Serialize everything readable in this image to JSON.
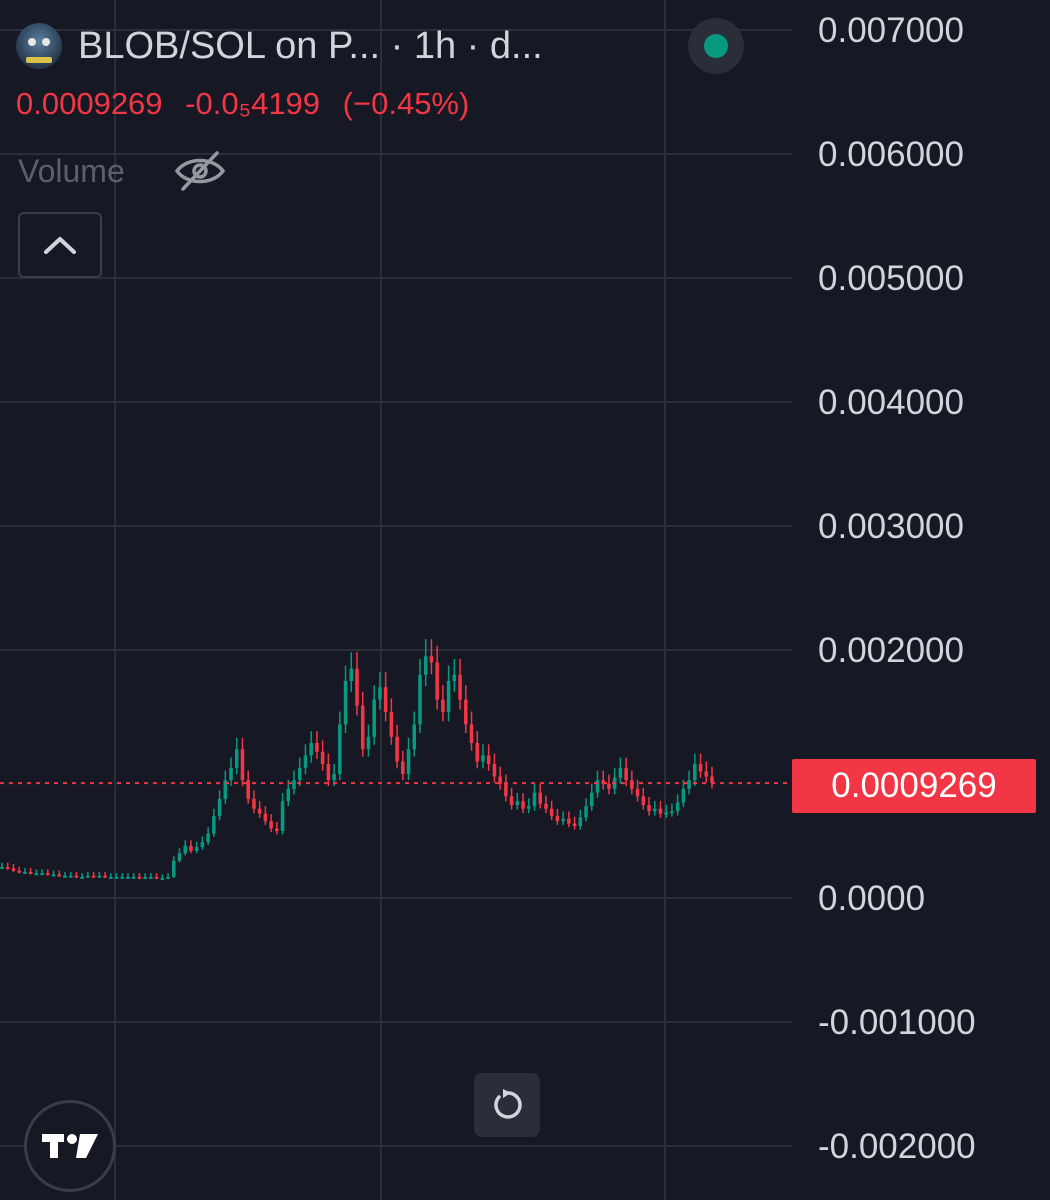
{
  "header": {
    "title": "BLOB/SOL on P...  · 1h · d...",
    "avatar": "blob-avatar",
    "status_color": "#089981"
  },
  "price": {
    "last": "0.0009269",
    "change": "-0.0₅4199",
    "change_pct": "(−0.45%)",
    "color": "#f23645"
  },
  "volume": {
    "label": "Volume",
    "icon": "eye-off-icon"
  },
  "buttons": {
    "collapse_icon": "chevron-up-icon",
    "reset_icon": "reset-icon",
    "logo": "tradingview-logo"
  },
  "colors": {
    "background": "#161823",
    "up": "#089981",
    "down": "#f23645",
    "axis_text": "#d1d4dc",
    "grid": "#2a2e39"
  },
  "chart_data": {
    "type": "candlestick",
    "title": "",
    "xlabel": "",
    "ylabel": "",
    "ylim": [
      -0.0022,
      0.0071
    ],
    "y_ticks": [
      "0.007000",
      "0.006000",
      "0.005000",
      "0.004000",
      "0.003000",
      "0.002000",
      "0.0000",
      "-0.001000",
      "-0.002000"
    ],
    "y_tick_values": [
      0.007,
      0.006,
      0.005,
      0.004,
      0.003,
      0.002,
      0.0,
      -0.001,
      -0.002
    ],
    "current_price": 0.0009269,
    "current_price_label": "0.0009269",
    "grid": true,
    "close_series": [
      0.00025,
      0.00024,
      0.00022,
      0.00021,
      0.00021,
      0.0002,
      0.0002,
      0.0002,
      0.00019,
      0.00019,
      0.00018,
      0.00018,
      0.00018,
      0.00017,
      0.00017,
      0.00018,
      0.00017,
      0.00018,
      0.00017,
      0.00017,
      0.00017,
      0.00017,
      0.00017,
      0.00017,
      0.00016,
      0.00017,
      0.00017,
      0.00016,
      0.00016,
      0.00017,
      0.0003,
      0.00036,
      0.00042,
      0.00038,
      0.00041,
      0.00045,
      0.00052,
      0.00066,
      0.0008,
      0.00095,
      0.00105,
      0.0012,
      0.00095,
      0.0008,
      0.00072,
      0.00068,
      0.00062,
      0.00056,
      0.00054,
      0.00078,
      0.00088,
      0.00095,
      0.00105,
      0.00115,
      0.00125,
      0.00118,
      0.00108,
      0.00095,
      0.001,
      0.0014,
      0.00175,
      0.00185,
      0.00155,
      0.0012,
      0.0013,
      0.0016,
      0.0017,
      0.0015,
      0.0013,
      0.0011,
      0.001,
      0.0012,
      0.0014,
      0.0018,
      0.00195,
      0.0019,
      0.0016,
      0.0015,
      0.00175,
      0.0018,
      0.0016,
      0.0014,
      0.00125,
      0.0011,
      0.00115,
      0.00108,
      0.00098,
      0.00092,
      0.00082,
      0.00075,
      0.00078,
      0.00072,
      0.00074,
      0.00085,
      0.00076,
      0.00072,
      0.00066,
      0.00062,
      0.00064,
      0.0006,
      0.00058,
      0.00065,
      0.00074,
      0.00085,
      0.00095,
      0.00092,
      0.00088,
      0.00097,
      0.00105,
      0.00095,
      0.00088,
      0.00082,
      0.00075,
      0.0007,
      0.00072,
      0.00068,
      0.00069,
      0.0007,
      0.00077,
      0.00088,
      0.00095,
      0.00108,
      0.00102,
      0.00098,
      0.00093
    ]
  }
}
